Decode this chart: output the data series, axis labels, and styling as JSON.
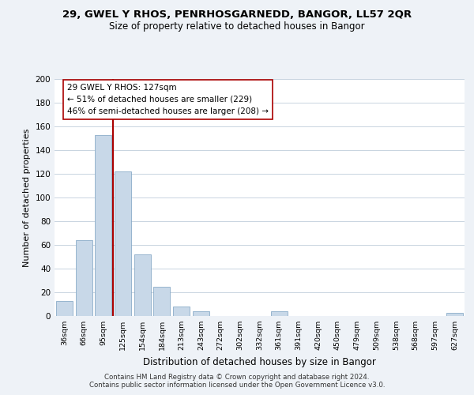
{
  "title": "29, GWEL Y RHOS, PENRHOSGARNEDD, BANGOR, LL57 2QR",
  "subtitle": "Size of property relative to detached houses in Bangor",
  "xlabel": "Distribution of detached houses by size in Bangor",
  "ylabel": "Number of detached properties",
  "bar_labels": [
    "36sqm",
    "66sqm",
    "95sqm",
    "125sqm",
    "154sqm",
    "184sqm",
    "213sqm",
    "243sqm",
    "272sqm",
    "302sqm",
    "332sqm",
    "361sqm",
    "391sqm",
    "420sqm",
    "450sqm",
    "479sqm",
    "509sqm",
    "538sqm",
    "568sqm",
    "597sqm",
    "627sqm"
  ],
  "bar_values": [
    13,
    64,
    153,
    122,
    52,
    25,
    8,
    4,
    0,
    0,
    0,
    4,
    0,
    0,
    0,
    0,
    0,
    0,
    0,
    0,
    3
  ],
  "bar_color": "#c8d8e8",
  "bar_edge_color": "#7aa0c0",
  "vline_x_index": 3,
  "vline_color": "#aa0000",
  "annotation_text": "29 GWEL Y RHOS: 127sqm\n← 51% of detached houses are smaller (229)\n46% of semi-detached houses are larger (208) →",
  "annotation_box_color": "white",
  "annotation_box_edge": "#aa0000",
  "ylim": [
    0,
    200
  ],
  "yticks": [
    0,
    20,
    40,
    60,
    80,
    100,
    120,
    140,
    160,
    180,
    200
  ],
  "footer_text": "Contains HM Land Registry data © Crown copyright and database right 2024.\nContains public sector information licensed under the Open Government Licence v3.0.",
  "background_color": "#eef2f7",
  "plot_background": "white",
  "grid_color": "#c8d4e0"
}
